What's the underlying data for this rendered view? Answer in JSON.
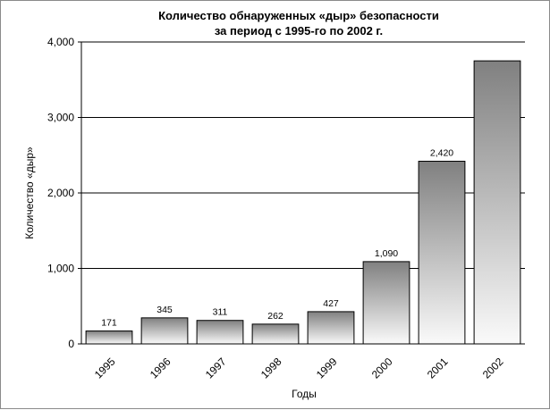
{
  "chart_data": {
    "type": "bar",
    "title": [
      "Количество обнаруженных «дыр» безопасности",
      "за период с 1995-го по 2002 г."
    ],
    "xlabel": "Годы",
    "ylabel": "Количество «дыр»",
    "categories": [
      "1995",
      "1996",
      "1997",
      "1998",
      "1999",
      "2000",
      "2001",
      "2002"
    ],
    "values": [
      171,
      345,
      311,
      262,
      427,
      1090,
      2420,
      3750
    ],
    "data_labels": [
      "171",
      "345",
      "311",
      "262",
      "427",
      "1,090",
      "2,420",
      ""
    ],
    "ylim": [
      0,
      4000
    ],
    "yticks": [
      0,
      1000,
      2000,
      3000,
      4000
    ],
    "ytick_labels": [
      "0",
      "1,000",
      "2,000",
      "3,000",
      "4,000"
    ],
    "grid": true,
    "legend": "none",
    "bar_gradient": [
      "#808080",
      "#fafafa"
    ]
  }
}
